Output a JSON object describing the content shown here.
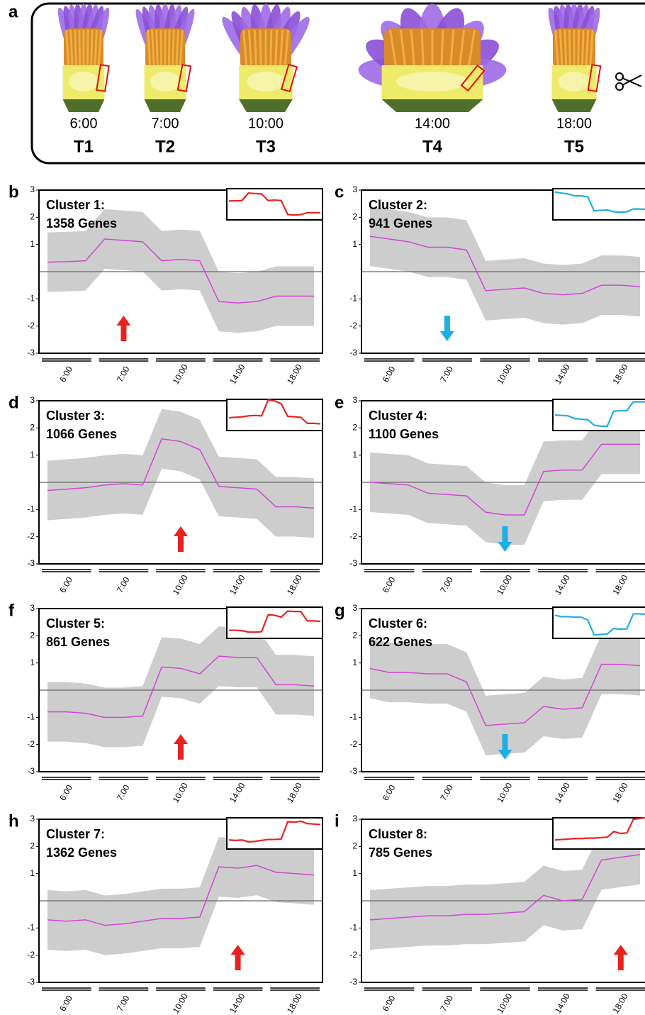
{
  "panel_labels": [
    "a",
    "b",
    "c",
    "d",
    "e",
    "f",
    "g",
    "h",
    "i"
  ],
  "flowers": {
    "times": [
      "6:00",
      "7:00",
      "10:00",
      "14:00",
      "18:00"
    ],
    "labels": [
      "T1",
      "T2",
      "T3",
      "T4",
      "T5"
    ]
  },
  "chart_data": [
    {
      "type": "line",
      "title": "Cluster 1:",
      "subtitle": "1358 Genes",
      "inset_color": "#e8221e",
      "categories": [
        null,
        "6:00",
        null,
        null,
        "7:00",
        null,
        null,
        "10:00",
        null,
        null,
        "14:00",
        null,
        null,
        "18:00",
        null
      ],
      "series": [
        {
          "color": "#d146d6",
          "values": [
            0.35,
            0.37,
            0.4,
            1.2,
            1.15,
            1.1,
            0.4,
            0.45,
            0.4,
            -1.1,
            -1.15,
            -1.1,
            -0.9,
            -0.9,
            -0.9
          ]
        }
      ],
      "ylim": [
        -3,
        3
      ],
      "yticks": [
        -3,
        -2,
        -1,
        1,
        2,
        3
      ]
    },
    {
      "type": "line",
      "title": "Cluster 2:",
      "subtitle": "941 Genes",
      "inset_color": "#1eaee6",
      "categories": [
        null,
        "6:00",
        null,
        null,
        "7:00",
        null,
        null,
        "10:00",
        null,
        null,
        "14:00",
        null,
        null,
        "18:00",
        null
      ],
      "series": [
        {
          "color": "#d146d6",
          "values": [
            1.3,
            1.2,
            1.1,
            0.9,
            0.9,
            0.8,
            -0.7,
            -0.65,
            -0.6,
            -0.8,
            -0.85,
            -0.8,
            -0.5,
            -0.5,
            -0.55
          ]
        }
      ],
      "ylim": [
        -3,
        3
      ],
      "yticks": [
        -3,
        -2,
        -1,
        1,
        2,
        3
      ]
    },
    {
      "type": "line",
      "title": "Cluster 3:",
      "subtitle": "1066 Genes",
      "inset_color": "#e8221e",
      "categories": [
        null,
        "6:00",
        null,
        null,
        "7:00",
        null,
        null,
        "10:00",
        null,
        null,
        "14:00",
        null,
        null,
        "18:00",
        null
      ],
      "series": [
        {
          "color": "#d146d6",
          "values": [
            -0.3,
            -0.25,
            -0.2,
            -0.1,
            -0.05,
            -0.1,
            1.6,
            1.5,
            1.2,
            -0.15,
            -0.2,
            -0.25,
            -0.9,
            -0.9,
            -0.95
          ]
        }
      ],
      "ylim": [
        -3,
        3
      ],
      "yticks": [
        -3,
        -2,
        -1,
        1,
        2,
        3
      ]
    },
    {
      "type": "line",
      "title": "Cluster 4:",
      "subtitle": "1100 Genes",
      "inset_color": "#1eaee6",
      "categories": [
        null,
        "6:00",
        null,
        null,
        "7:00",
        null,
        null,
        "10:00",
        null,
        null,
        "14:00",
        null,
        null,
        "18:00",
        null
      ],
      "series": [
        {
          "color": "#d146d6",
          "values": [
            0,
            -0.05,
            -0.1,
            -0.4,
            -0.45,
            -0.5,
            -1.1,
            -1.2,
            -1.2,
            0.4,
            0.45,
            0.45,
            1.4,
            1.4,
            1.4
          ]
        }
      ],
      "ylim": [
        -3,
        3
      ],
      "yticks": [
        -3,
        -2,
        -1,
        1,
        2,
        3
      ]
    },
    {
      "type": "line",
      "title": "Cluster 5:",
      "subtitle": "861 Genes",
      "inset_color": "#e8221e",
      "categories": [
        null,
        "6:00",
        null,
        null,
        "7:00",
        null,
        null,
        "10:00",
        null,
        null,
        "14:00",
        null,
        null,
        "18:00",
        null
      ],
      "series": [
        {
          "color": "#d146d6",
          "values": [
            -0.8,
            -0.8,
            -0.85,
            -1.0,
            -1.0,
            -0.95,
            0.85,
            0.8,
            0.6,
            1.25,
            1.2,
            1.2,
            0.2,
            0.2,
            0.15
          ]
        }
      ],
      "ylim": [
        -3,
        3
      ],
      "yticks": [
        -3,
        -2,
        -1,
        1,
        2,
        3
      ]
    },
    {
      "type": "line",
      "title": "Cluster 6:",
      "subtitle": "622 Genes",
      "inset_color": "#1eaee6",
      "categories": [
        null,
        "6:00",
        null,
        null,
        "7:00",
        null,
        null,
        "10:00",
        null,
        null,
        "14:00",
        null,
        null,
        "18:00",
        null
      ],
      "series": [
        {
          "color": "#d146d6",
          "values": [
            0.8,
            0.65,
            0.65,
            0.6,
            0.6,
            0.3,
            -1.3,
            -1.25,
            -1.2,
            -0.6,
            -0.7,
            -0.65,
            0.95,
            0.95,
            0.9
          ]
        }
      ],
      "ylim": [
        -3,
        3
      ],
      "yticks": [
        -3,
        -2,
        -1,
        1,
        2,
        3
      ]
    },
    {
      "type": "line",
      "title": "Cluster 7:",
      "subtitle": "1362 Genes",
      "inset_color": "#e8221e",
      "categories": [
        null,
        "6:00",
        null,
        null,
        "7:00",
        null,
        null,
        "10:00",
        null,
        null,
        "14:00",
        null,
        null,
        "18:00",
        null
      ],
      "series": [
        {
          "color": "#d146d6",
          "values": [
            -0.7,
            -0.75,
            -0.7,
            -0.9,
            -0.85,
            -0.75,
            -0.65,
            -0.65,
            -0.6,
            1.25,
            1.2,
            1.3,
            1.05,
            1.0,
            0.95
          ]
        }
      ],
      "ylim": [
        -3,
        3
      ],
      "yticks": [
        -3,
        -2,
        -1,
        1,
        2,
        3
      ]
    },
    {
      "type": "line",
      "title": "Cluster 8:",
      "subtitle": "785 Genes",
      "inset_color": "#e8221e",
      "categories": [
        null,
        "6:00",
        null,
        null,
        "7:00",
        null,
        null,
        "10:00",
        null,
        null,
        "14:00",
        null,
        null,
        "18:00",
        null
      ],
      "series": [
        {
          "color": "#d146d6",
          "values": [
            -0.7,
            -0.65,
            -0.6,
            -0.55,
            -0.55,
            -0.5,
            -0.5,
            -0.45,
            -0.4,
            0.2,
            0.0,
            0.05,
            1.5,
            1.6,
            1.7
          ]
        }
      ],
      "ylim": [
        -3,
        3
      ],
      "yticks": [
        -3,
        -2,
        -1,
        1,
        2,
        3
      ]
    }
  ]
}
